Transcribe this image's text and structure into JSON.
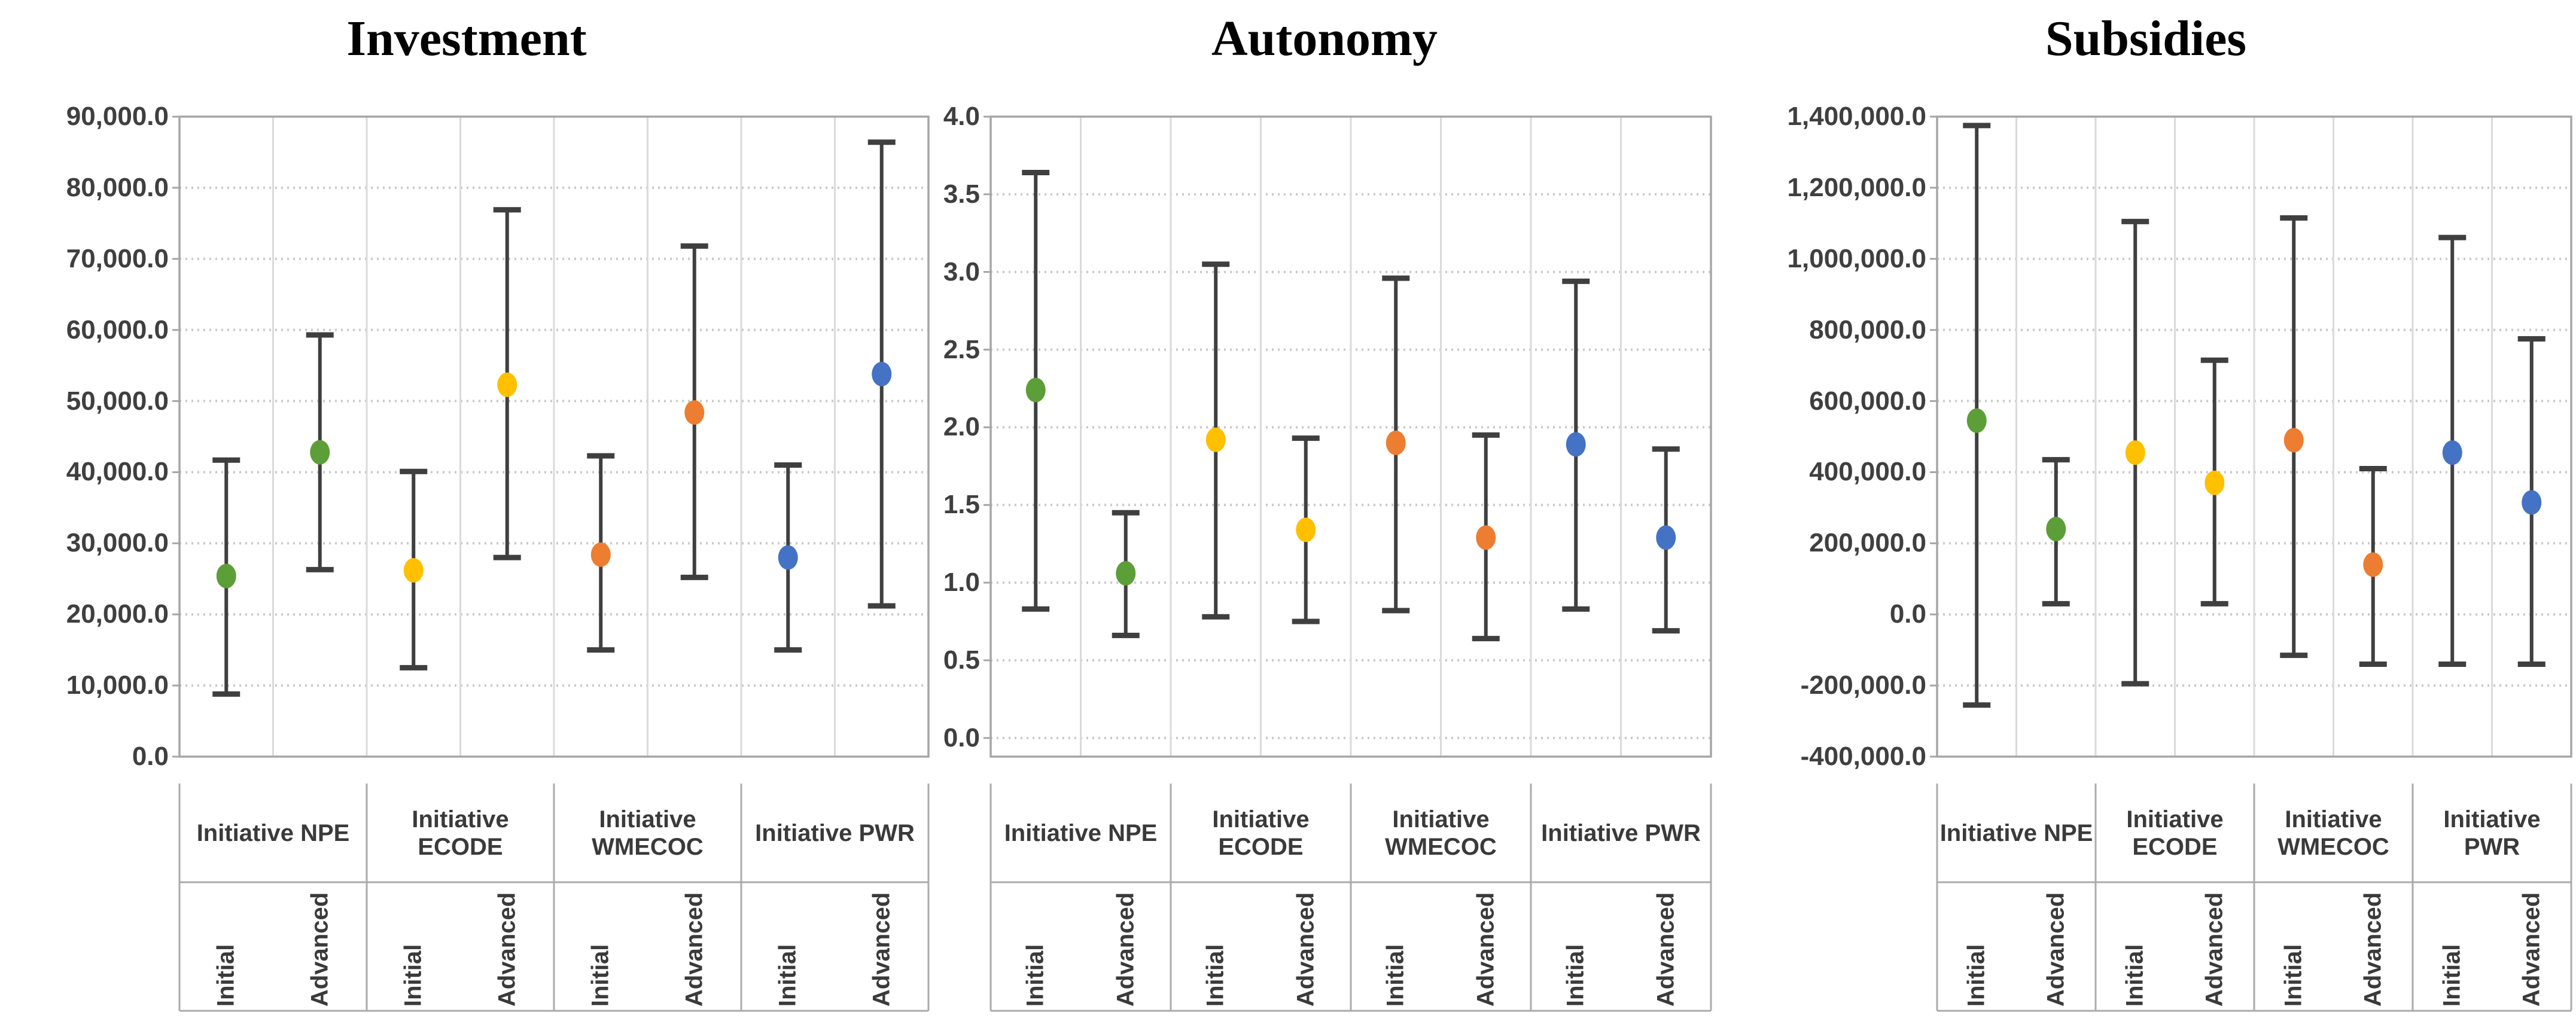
{
  "figure": {
    "background": "#FFFFFF",
    "panel_count": 3,
    "conditions": [
      "Initial",
      "Advanced"
    ]
  },
  "styles": {
    "title_color": "#000000",
    "tick_label_color": "#3F3F3F",
    "category_label_color": "#3A3A3A",
    "error_bar_color": "#3F3F3F",
    "grid_color": "#C9C9C9",
    "column_line_color": "#DADADA",
    "border_color": "#A6A6A6",
    "table_line_color": "#ABABAB",
    "npe_color": "#5C9E38",
    "ecode_color": "#FFC000",
    "wmecoc_color": "#ED7D31",
    "pwr_color": "#4472C4"
  },
  "chart_data": [
    {
      "type": "scatter",
      "title": "Investment",
      "xlabel": "",
      "ylabel": "",
      "grid": true,
      "legend_position": "none",
      "ylim": [
        0,
        90000
      ],
      "yticks": [
        {
          "value": 90000,
          "label": "90,000.0"
        },
        {
          "value": 80000,
          "label": "80,000.0"
        },
        {
          "value": 70000,
          "label": "70,000.0"
        },
        {
          "value": 60000,
          "label": "60,000.0"
        },
        {
          "value": 50000,
          "label": "50,000.0"
        },
        {
          "value": 40000,
          "label": "40,000.0"
        },
        {
          "value": 30000,
          "label": "30,000.0"
        },
        {
          "value": 20000,
          "label": "20,000.0"
        },
        {
          "value": 10000,
          "label": "10,000.0"
        },
        {
          "value": 0,
          "label": "0.0"
        }
      ],
      "groups": [
        {
          "label": "Initiative NPE",
          "color": "#5C9E38",
          "points": [
            {
              "condition": "Initial",
              "value": 25400,
              "err_low": 8800,
              "err_high": 41700
            },
            {
              "condition": "Advanced",
              "value": 42800,
              "err_low": 26300,
              "err_high": 59300
            }
          ]
        },
        {
          "label": "Initiative\nECODE",
          "color": "#FFC000",
          "points": [
            {
              "condition": "Initial",
              "value": 26200,
              "err_low": 12500,
              "err_high": 40100
            },
            {
              "condition": "Advanced",
              "value": 52300,
              "err_low": 28000,
              "err_high": 76900
            }
          ]
        },
        {
          "label": "Initiative\nWMECOC",
          "color": "#ED7D31",
          "points": [
            {
              "condition": "Initial",
              "value": 28400,
              "err_low": 15000,
              "err_high": 42300
            },
            {
              "condition": "Advanced",
              "value": 48400,
              "err_low": 25200,
              "err_high": 71800
            }
          ]
        },
        {
          "label": "Initiative PWR",
          "color": "#4472C4",
          "points": [
            {
              "condition": "Initial",
              "value": 28000,
              "err_low": 15000,
              "err_high": 41000
            },
            {
              "condition": "Advanced",
              "value": 53800,
              "err_low": 21200,
              "err_high": 86400
            }
          ]
        }
      ]
    },
    {
      "type": "scatter",
      "title": "Autonomy",
      "xlabel": "",
      "ylabel": "",
      "grid": true,
      "legend_position": "none",
      "ylim": [
        -0.12,
        4.0
      ],
      "yticks": [
        {
          "value": 4.0,
          "label": "4.0"
        },
        {
          "value": 3.5,
          "label": "3.5"
        },
        {
          "value": 3.0,
          "label": "3.0"
        },
        {
          "value": 2.5,
          "label": "2.5"
        },
        {
          "value": 2.0,
          "label": "2.0"
        },
        {
          "value": 1.5,
          "label": "1.5"
        },
        {
          "value": 1.0,
          "label": "1.0"
        },
        {
          "value": 0.5,
          "label": "0.5"
        },
        {
          "value": 0.0,
          "label": "0.0"
        }
      ],
      "groups": [
        {
          "label": "Initiative NPE",
          "color": "#5C9E38",
          "points": [
            {
              "condition": "Initial",
              "value": 2.24,
              "err_low": 0.83,
              "err_high": 3.64
            },
            {
              "condition": "Advanced",
              "value": 1.06,
              "err_low": 0.66,
              "err_high": 1.45
            }
          ]
        },
        {
          "label": "Initiative\nECODE",
          "color": "#FFC000",
          "points": [
            {
              "condition": "Initial",
              "value": 1.92,
              "err_low": 0.78,
              "err_high": 3.05
            },
            {
              "condition": "Advanced",
              "value": 1.34,
              "err_low": 0.75,
              "err_high": 1.93
            }
          ]
        },
        {
          "label": "Initiative\nWMECOC",
          "color": "#ED7D31",
          "points": [
            {
              "condition": "Initial",
              "value": 1.9,
              "err_low": 0.82,
              "err_high": 2.96
            },
            {
              "condition": "Advanced",
              "value": 1.29,
              "err_low": 0.64,
              "err_high": 1.95
            }
          ]
        },
        {
          "label": "Initiative PWR",
          "color": "#4472C4",
          "points": [
            {
              "condition": "Initial",
              "value": 1.89,
              "err_low": 0.83,
              "err_high": 2.94
            },
            {
              "condition": "Advanced",
              "value": 1.29,
              "err_low": 0.69,
              "err_high": 1.86
            }
          ]
        }
      ]
    },
    {
      "type": "scatter",
      "title": "Subsidies",
      "xlabel": "",
      "ylabel": "",
      "grid": true,
      "legend_position": "none",
      "ylim": [
        -400000,
        1400000
      ],
      "yticks": [
        {
          "value": 1400000,
          "label": "1,400,000.0"
        },
        {
          "value": 1200000,
          "label": "1,200,000.0"
        },
        {
          "value": 1000000,
          "label": "1,000,000.0"
        },
        {
          "value": 800000,
          "label": "800,000.0"
        },
        {
          "value": 600000,
          "label": "600,000.0"
        },
        {
          "value": 400000,
          "label": "400,000.0"
        },
        {
          "value": 200000,
          "label": "200,000.0"
        },
        {
          "value": 0,
          "label": "0.0"
        },
        {
          "value": -200000,
          "label": "-200,000.0"
        },
        {
          "value": -400000,
          "label": "-400,000.0"
        }
      ],
      "groups": [
        {
          "label": "Initiative NPE",
          "color": "#5C9E38",
          "points": [
            {
              "condition": "Initial",
              "value": 545000,
              "err_low": -255000,
              "err_high": 1375000
            },
            {
              "condition": "Advanced",
              "value": 240000,
              "err_low": 30000,
              "err_high": 435000
            }
          ]
        },
        {
          "label": "Initiative\nECODE",
          "color": "#FFC000",
          "points": [
            {
              "condition": "Initial",
              "value": 455000,
              "err_low": -195000,
              "err_high": 1105000
            },
            {
              "condition": "Advanced",
              "value": 370000,
              "err_low": 30000,
              "err_high": 715000
            }
          ]
        },
        {
          "label": "Initiative\nWMECOC",
          "color": "#ED7D31",
          "points": [
            {
              "condition": "Initial",
              "value": 490000,
              "err_low": -115000,
              "err_high": 1115000
            },
            {
              "condition": "Advanced",
              "value": 140000,
              "err_low": -140000,
              "err_high": 410000
            }
          ]
        },
        {
          "label": "Initiative PWR",
          "color": "#4472C4",
          "points": [
            {
              "condition": "Initial",
              "value": 455000,
              "err_low": -140000,
              "err_high": 1060000
            },
            {
              "condition": "Advanced",
              "value": 315000,
              "err_low": -140000,
              "err_high": 775000
            }
          ]
        }
      ]
    }
  ]
}
